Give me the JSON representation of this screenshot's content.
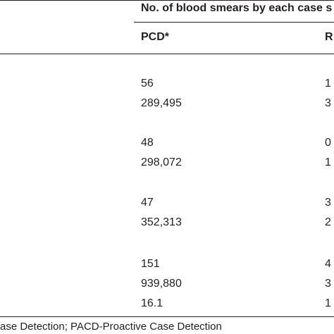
{
  "table": {
    "group_header": "No. of blood smears by each case s",
    "columns": [
      "PCD*",
      "R"
    ],
    "rows": [
      {
        "pcd": "56",
        "next": "1"
      },
      {
        "pcd": "289,495",
        "next": "3"
      },
      {
        "pcd": "48",
        "next": "0"
      },
      {
        "pcd": "298,072",
        "next": "1"
      },
      {
        "pcd": "47",
        "next": "3"
      },
      {
        "pcd": "352,313",
        "next": "2"
      },
      {
        "pcd": "151",
        "next": "4"
      },
      {
        "pcd": "939,880",
        "next": "3"
      },
      {
        "pcd": "16.1",
        "next": "1"
      }
    ]
  },
  "footnote": "ase Detection; PACD-Proactive Case Detection"
}
